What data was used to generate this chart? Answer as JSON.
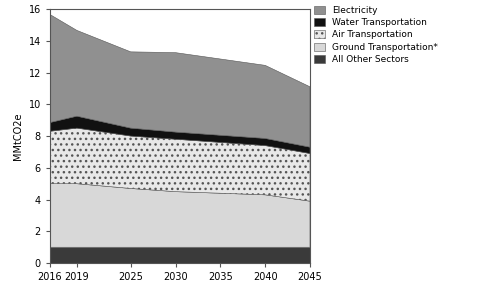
{
  "years": [
    2016,
    2019,
    2025,
    2030,
    2035,
    2040,
    2045
  ],
  "all_other_sectors": [
    1.0,
    1.0,
    1.0,
    1.0,
    1.0,
    1.0,
    1.0
  ],
  "ground_transportation": [
    4.0,
    4.0,
    3.7,
    3.5,
    3.4,
    3.3,
    2.9
  ],
  "air_transportation": [
    3.3,
    3.5,
    3.3,
    3.3,
    3.2,
    3.1,
    3.0
  ],
  "water_transportation": [
    0.55,
    0.75,
    0.5,
    0.45,
    0.45,
    0.45,
    0.4
  ],
  "electricity": [
    6.8,
    5.4,
    4.8,
    5.0,
    4.8,
    4.6,
    3.8
  ],
  "colors": {
    "all_other_sectors": "#3a3a3a",
    "ground_transportation": "#d8d8d8",
    "air_transportation": "#e8e8e8",
    "water_transportation": "#111111",
    "electricity": "#909090"
  },
  "hatches": {
    "all_other_sectors": "",
    "ground_transportation": "",
    "air_transportation": "...",
    "water_transportation": "",
    "electricity": ""
  },
  "legend_labels": [
    "Electricity",
    "Water Transportation",
    "Air Transportation",
    "Ground Transportation*",
    "All Other Sectors"
  ],
  "legend_keys_order": [
    "electricity",
    "water_transportation",
    "air_transportation",
    "ground_transportation",
    "all_other_sectors"
  ],
  "ylabel": "MMtCO2e",
  "ylim": [
    0,
    16
  ],
  "yticks": [
    0,
    2,
    4,
    6,
    8,
    10,
    12,
    14,
    16
  ],
  "xticks": [
    2016,
    2019,
    2025,
    2030,
    2035,
    2040,
    2045
  ],
  "background_color": "#ffffff",
  "edge_color": "#555555"
}
